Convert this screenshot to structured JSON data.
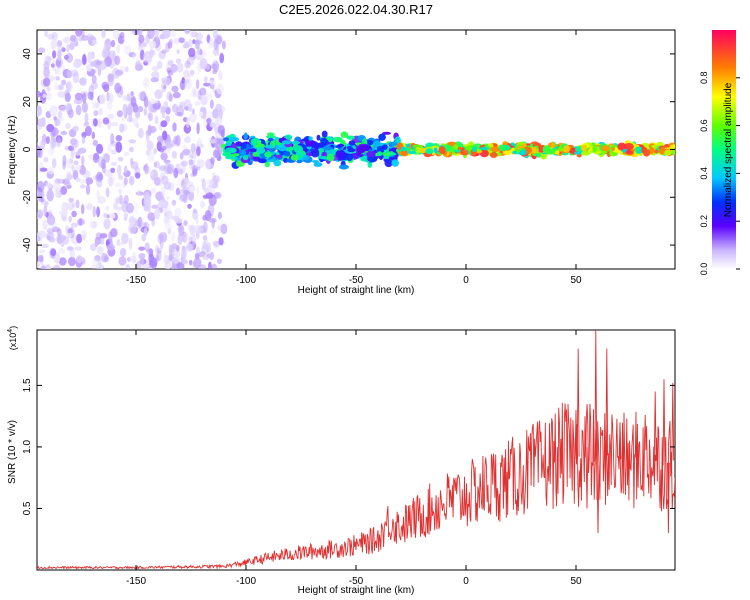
{
  "figure": {
    "title": "C2E5.2026.022.04.30.R17"
  },
  "chart_data": [
    {
      "type": "heatmap",
      "xlabel": "Height of straight line (km)",
      "ylabel": "Frequency (Hz)",
      "xlim": [
        -195,
        95
      ],
      "ylim": [
        -50,
        50
      ],
      "xticks": [
        -150,
        -100,
        -50,
        0,
        50
      ],
      "yticks": [
        -40,
        -20,
        0,
        20,
        40
      ],
      "colorbar": {
        "label": "Normalized spectral amplitude",
        "range": [
          0.0,
          1.0
        ],
        "ticks": [
          0.0,
          0.2,
          0.4,
          0.6,
          0.8
        ],
        "tick_labels": [
          "0.0",
          "0.2",
          "0.4",
          "0.6",
          "0.8"
        ]
      },
      "description_regions": [
        {
          "x_range": [
            -195,
            -110
          ],
          "freq_range": [
            -50,
            50
          ],
          "amplitude": [
            0.02,
            0.12
          ]
        },
        {
          "x_range": [
            -110,
            -30
          ],
          "freq_range": [
            -8,
            8
          ],
          "amplitude": [
            0.15,
            0.55
          ]
        },
        {
          "x_range": [
            -30,
            95
          ],
          "freq_range": [
            -3,
            3
          ],
          "amplitude": [
            0.4,
            0.95
          ]
        }
      ]
    },
    {
      "type": "line",
      "xlabel": "Height of straight line (km)",
      "ylabel": "SNR (10 * v/v)",
      "exponent_label": "(x10",
      "exponent_power": "4",
      "exponent_close": ")",
      "xlim": [
        -195,
        95
      ],
      "ylim": [
        0,
        1.95
      ],
      "xticks": [
        -150,
        -100,
        -50,
        0,
        50
      ],
      "yticks": [
        0.5,
        1.0,
        1.5
      ],
      "ytick_labels": [
        "0.5",
        "1.0",
        "1.5"
      ],
      "color": "#e03030",
      "series": [
        {
          "name": "SNR",
          "x": [
            -195,
            -150,
            -110,
            -100,
            -90,
            -80,
            -70,
            -60,
            -50,
            -40,
            -35,
            -30,
            -20,
            -10,
            0,
            10,
            20,
            30,
            40,
            45,
            50,
            55,
            60,
            65,
            70,
            75,
            80,
            85,
            90,
            95
          ],
          "y": [
            0.02,
            0.02,
            0.03,
            0.06,
            0.1,
            0.13,
            0.15,
            0.17,
            0.2,
            0.25,
            0.4,
            0.35,
            0.45,
            0.55,
            0.6,
            0.68,
            0.74,
            0.82,
            0.9,
            0.95,
            0.9,
            1.0,
            0.85,
            0.95,
            0.9,
            0.85,
            0.95,
            0.9,
            0.85,
            0.9
          ]
        }
      ],
      "peaks": [
        {
          "x": 50,
          "y": 1.3
        },
        {
          "x": 51,
          "y": 1.8
        },
        {
          "x": 55,
          "y": 0.5
        },
        {
          "x": 59,
          "y": 1.95
        },
        {
          "x": 60,
          "y": 0.3
        },
        {
          "x": 64,
          "y": 1.8
        },
        {
          "x": 70,
          "y": 1.2
        },
        {
          "x": 86,
          "y": 1.45
        },
        {
          "x": 90,
          "y": 1.55
        },
        {
          "x": 92,
          "y": 0.3
        },
        {
          "x": 94,
          "y": 1.52
        }
      ]
    }
  ]
}
